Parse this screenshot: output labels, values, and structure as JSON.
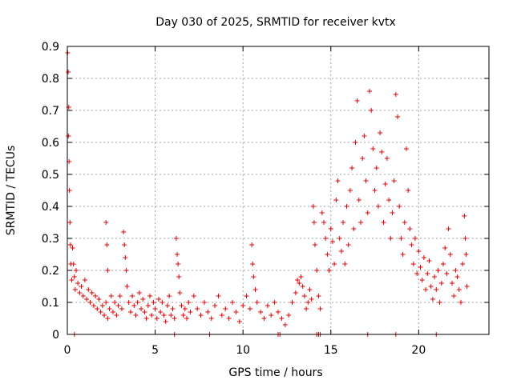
{
  "chart_data": {
    "type": "scatter",
    "title": "Day 030 of 2025, SRMTID for receiver kvtx",
    "xlabel": "GPS time / hours",
    "ylabel": "SRMTID / TECUs",
    "xlim": [
      0,
      24
    ],
    "ylim": [
      0,
      0.9
    ],
    "xticks": [
      0,
      5,
      10,
      15,
      20
    ],
    "yticks": [
      0,
      0.1,
      0.2,
      0.3,
      0.4,
      0.5,
      0.6,
      0.7,
      0.8,
      0.9
    ],
    "xtick_labels": [
      "0",
      "5",
      "10",
      "15",
      "20"
    ],
    "ytick_labels": [
      "0",
      "0.1",
      "0.2",
      "0.3",
      "0.4",
      "0.5",
      "0.6",
      "0.7",
      "0.8",
      "0.9"
    ],
    "grid": true,
    "marker": "+",
    "color": "#e00000",
    "series": [
      {
        "name": "SRMTID",
        "points": [
          [
            0.02,
            0.88
          ],
          [
            0.05,
            0.82
          ],
          [
            0.08,
            0.71
          ],
          [
            0.06,
            0.62
          ],
          [
            0.1,
            0.54
          ],
          [
            0.12,
            0.45
          ],
          [
            0.15,
            0.35
          ],
          [
            0.18,
            0.28
          ],
          [
            0.2,
            0.22
          ],
          [
            0.25,
            0.17
          ],
          [
            0.3,
            0.27
          ],
          [
            0.35,
            0.22
          ],
          [
            0.4,
            0.18
          ],
          [
            0.45,
            0.14
          ],
          [
            0.5,
            0.2
          ],
          [
            0.6,
            0.16
          ],
          [
            0.7,
            0.13
          ],
          [
            0.8,
            0.15
          ],
          [
            0.9,
            0.12
          ],
          [
            1.0,
            0.17
          ],
          [
            1.1,
            0.11
          ],
          [
            1.2,
            0.14
          ],
          [
            1.3,
            0.1
          ],
          [
            1.4,
            0.13
          ],
          [
            1.5,
            0.09
          ],
          [
            1.6,
            0.12
          ],
          [
            1.7,
            0.08
          ],
          [
            1.8,
            0.11
          ],
          [
            1.9,
            0.07
          ],
          [
            2.0,
            0.09
          ],
          [
            2.1,
            0.06
          ],
          [
            2.2,
            0.1
          ],
          [
            2.3,
            0.05
          ],
          [
            2.4,
            0.08
          ],
          [
            2.2,
            0.35
          ],
          [
            2.25,
            0.28
          ],
          [
            2.3,
            0.2
          ],
          [
            2.5,
            0.12
          ],
          [
            2.6,
            0.07
          ],
          [
            2.7,
            0.1
          ],
          [
            2.8,
            0.06
          ],
          [
            2.9,
            0.09
          ],
          [
            3.0,
            0.12
          ],
          [
            3.1,
            0.08
          ],
          [
            3.2,
            0.32
          ],
          [
            3.25,
            0.28
          ],
          [
            3.3,
            0.24
          ],
          [
            3.35,
            0.2
          ],
          [
            3.4,
            0.15
          ],
          [
            3.5,
            0.1
          ],
          [
            3.6,
            0.07
          ],
          [
            3.7,
            0.12
          ],
          [
            3.8,
            0.09
          ],
          [
            3.9,
            0.06
          ],
          [
            4.0,
            0.1
          ],
          [
            4.1,
            0.13
          ],
          [
            4.2,
            0.08
          ],
          [
            4.3,
            0.11
          ],
          [
            4.4,
            0.07
          ],
          [
            4.5,
            0.05
          ],
          [
            4.6,
            0.09
          ],
          [
            4.7,
            0.12
          ],
          [
            4.8,
            0.06
          ],
          [
            4.9,
            0.1
          ],
          [
            5.0,
            0.08
          ],
          [
            5.1,
            0.05
          ],
          [
            5.2,
            0.11
          ],
          [
            5.3,
            0.07
          ],
          [
            5.4,
            0.1
          ],
          [
            5.5,
            0.06
          ],
          [
            5.6,
            0.04
          ],
          [
            5.7,
            0.09
          ],
          [
            5.8,
            0.12
          ],
          [
            5.9,
            0.06
          ],
          [
            6.0,
            0.08
          ],
          [
            6.1,
            0.05
          ],
          [
            6.2,
            0.3
          ],
          [
            6.25,
            0.25
          ],
          [
            6.3,
            0.22
          ],
          [
            6.35,
            0.18
          ],
          [
            6.4,
            0.13
          ],
          [
            6.5,
            0.09
          ],
          [
            6.6,
            0.06
          ],
          [
            6.7,
            0.08
          ],
          [
            6.8,
            0.05
          ],
          [
            6.9,
            0.1
          ],
          [
            7.0,
            0.07
          ],
          [
            7.2,
            0.12
          ],
          [
            7.4,
            0.08
          ],
          [
            7.6,
            0.06
          ],
          [
            7.8,
            0.1
          ],
          [
            8.0,
            0.07
          ],
          [
            8.2,
            0.05
          ],
          [
            8.4,
            0.09
          ],
          [
            8.6,
            0.12
          ],
          [
            8.8,
            0.06
          ],
          [
            9.0,
            0.08
          ],
          [
            9.2,
            0.05
          ],
          [
            9.4,
            0.1
          ],
          [
            9.6,
            0.07
          ],
          [
            9.8,
            0.04
          ],
          [
            10.0,
            0.09
          ],
          [
            10.2,
            0.12
          ],
          [
            10.4,
            0.08
          ],
          [
            10.5,
            0.28
          ],
          [
            10.55,
            0.22
          ],
          [
            10.6,
            0.18
          ],
          [
            10.7,
            0.14
          ],
          [
            10.8,
            0.1
          ],
          [
            11.0,
            0.07
          ],
          [
            11.2,
            0.05
          ],
          [
            11.4,
            0.09
          ],
          [
            11.6,
            0.06
          ],
          [
            11.8,
            0.1
          ],
          [
            12.0,
            0.07
          ],
          [
            12.2,
            0.05
          ],
          [
            12.4,
            0.03
          ],
          [
            12.6,
            0.06
          ],
          [
            12.8,
            0.1
          ],
          [
            13.0,
            0.13
          ],
          [
            13.1,
            0.17
          ],
          [
            13.2,
            0.16
          ],
          [
            13.3,
            0.18
          ],
          [
            13.4,
            0.15
          ],
          [
            13.5,
            0.12
          ],
          [
            13.6,
            0.08
          ],
          [
            13.7,
            0.1
          ],
          [
            13.8,
            0.14
          ],
          [
            13.9,
            0.11
          ],
          [
            14.0,
            0.4
          ],
          [
            14.05,
            0.35
          ],
          [
            14.1,
            0.28
          ],
          [
            14.2,
            0.2
          ],
          [
            14.3,
            0.12
          ],
          [
            14.4,
            0.08
          ],
          [
            14.5,
            0.38
          ],
          [
            14.6,
            0.35
          ],
          [
            14.7,
            0.3
          ],
          [
            14.8,
            0.25
          ],
          [
            14.9,
            0.2
          ],
          [
            15.0,
            0.33
          ],
          [
            15.1,
            0.29
          ],
          [
            15.2,
            0.22
          ],
          [
            15.3,
            0.42
          ],
          [
            15.4,
            0.48
          ],
          [
            15.5,
            0.3
          ],
          [
            15.6,
            0.26
          ],
          [
            15.7,
            0.35
          ],
          [
            15.8,
            0.22
          ],
          [
            15.9,
            0.4
          ],
          [
            16.0,
            0.28
          ],
          [
            16.1,
            0.45
          ],
          [
            16.2,
            0.52
          ],
          [
            16.3,
            0.33
          ],
          [
            16.4,
            0.6
          ],
          [
            16.5,
            0.73
          ],
          [
            16.6,
            0.42
          ],
          [
            16.7,
            0.35
          ],
          [
            16.8,
            0.55
          ],
          [
            16.9,
            0.62
          ],
          [
            17.0,
            0.48
          ],
          [
            17.1,
            0.38
          ],
          [
            17.2,
            0.76
          ],
          [
            17.3,
            0.7
          ],
          [
            17.4,
            0.58
          ],
          [
            17.5,
            0.45
          ],
          [
            17.6,
            0.52
          ],
          [
            17.7,
            0.4
          ],
          [
            17.8,
            0.63
          ],
          [
            17.9,
            0.57
          ],
          [
            18.0,
            0.35
          ],
          [
            18.1,
            0.47
          ],
          [
            18.2,
            0.55
          ],
          [
            18.3,
            0.42
          ],
          [
            18.4,
            0.3
          ],
          [
            18.5,
            0.38
          ],
          [
            18.6,
            0.48
          ],
          [
            18.7,
            0.75
          ],
          [
            18.8,
            0.68
          ],
          [
            18.9,
            0.4
          ],
          [
            19.0,
            0.3
          ],
          [
            19.1,
            0.25
          ],
          [
            19.2,
            0.35
          ],
          [
            19.3,
            0.58
          ],
          [
            19.4,
            0.45
          ],
          [
            19.5,
            0.33
          ],
          [
            19.6,
            0.28
          ],
          [
            19.7,
            0.22
          ],
          [
            19.8,
            0.3
          ],
          [
            19.9,
            0.19
          ],
          [
            20.0,
            0.26
          ],
          [
            20.1,
            0.21
          ],
          [
            20.2,
            0.17
          ],
          [
            20.3,
            0.24
          ],
          [
            20.4,
            0.14
          ],
          [
            20.5,
            0.19
          ],
          [
            20.6,
            0.23
          ],
          [
            20.7,
            0.15
          ],
          [
            20.8,
            0.11
          ],
          [
            20.9,
            0.18
          ],
          [
            21.0,
            0.14
          ],
          [
            21.1,
            0.2
          ],
          [
            21.2,
            0.1
          ],
          [
            21.3,
            0.16
          ],
          [
            21.4,
            0.22
          ],
          [
            21.5,
            0.27
          ],
          [
            21.6,
            0.19
          ],
          [
            21.7,
            0.33
          ],
          [
            21.8,
            0.25
          ],
          [
            21.9,
            0.16
          ],
          [
            22.0,
            0.12
          ],
          [
            22.1,
            0.2
          ],
          [
            22.2,
            0.18
          ],
          [
            22.3,
            0.14
          ],
          [
            22.4,
            0.1
          ],
          [
            22.5,
            0.22
          ],
          [
            22.6,
            0.37
          ],
          [
            22.65,
            0.3
          ],
          [
            22.7,
            0.25
          ],
          [
            22.75,
            0.15
          ],
          [
            0.4,
            0.0
          ],
          [
            6.1,
            0.0
          ],
          [
            8.1,
            0.0
          ],
          [
            12.0,
            0.0
          ],
          [
            12.1,
            0.0
          ],
          [
            14.2,
            0.0
          ],
          [
            14.3,
            0.0
          ],
          [
            14.4,
            0.0
          ],
          [
            17.1,
            0.0
          ],
          [
            18.7,
            0.0
          ],
          [
            21.0,
            0.0
          ]
        ]
      }
    ]
  }
}
